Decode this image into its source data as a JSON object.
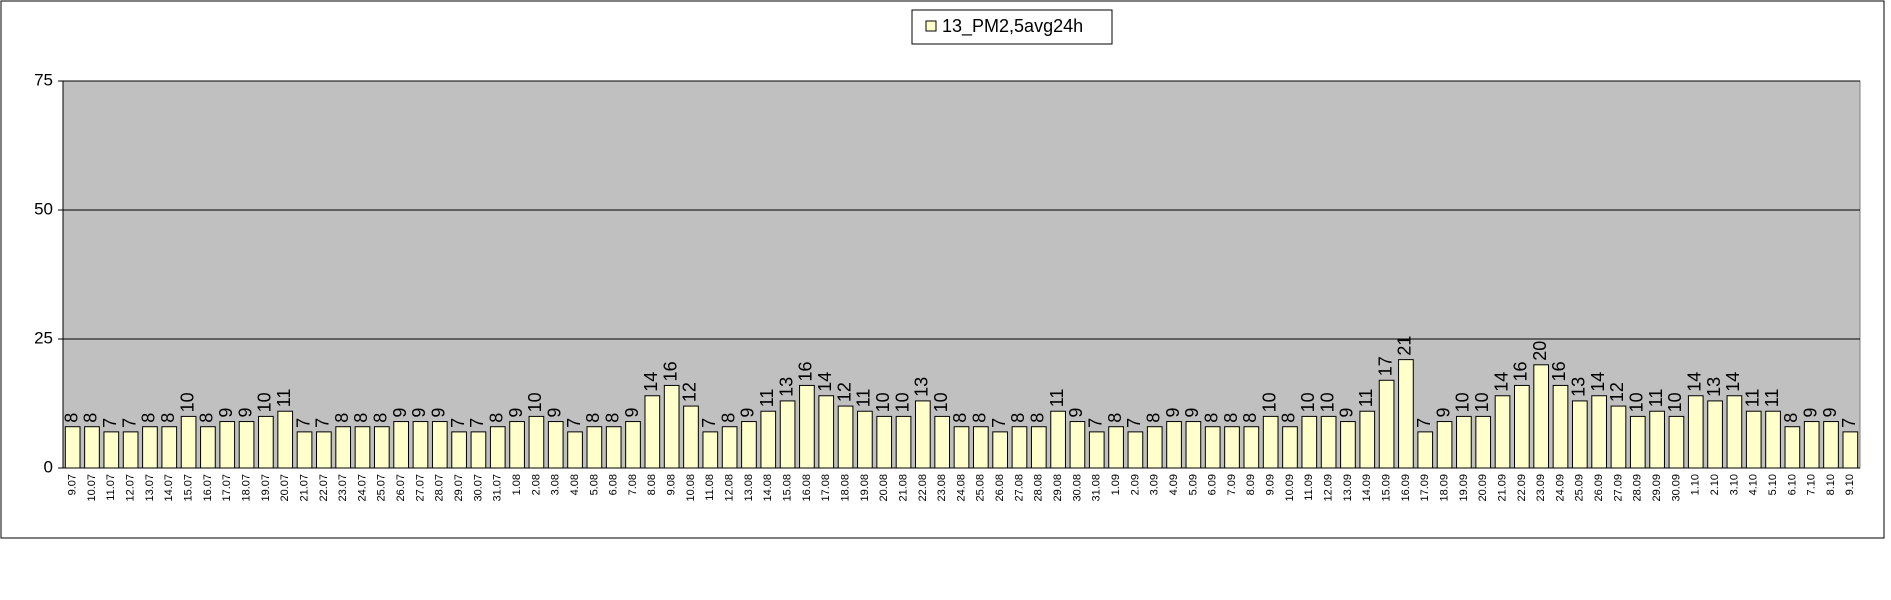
{
  "chart_data": {
    "type": "bar",
    "categories": [
      "9.07",
      "10.07",
      "11.07",
      "12.07",
      "13.07",
      "14.07",
      "15.07",
      "16.07",
      "17.07",
      "18.07",
      "19.07",
      "20.07",
      "21.07",
      "22.07",
      "23.07",
      "24.07",
      "25.07",
      "26.07",
      "27.07",
      "28.07",
      "29.07",
      "30.07",
      "31.07",
      "1.08",
      "2.08",
      "3.08",
      "4.08",
      "5.08",
      "6.08",
      "7.08",
      "8.08",
      "9.08",
      "10.08",
      "11.08",
      "12.08",
      "13.08",
      "14.08",
      "15.08",
      "16.08",
      "17.08",
      "18.08",
      "19.08",
      "20.08",
      "21.08",
      "22.08",
      "23.08",
      "24.08",
      "25.08",
      "26.08",
      "27.08",
      "28.08",
      "29.08",
      "30.08",
      "31.08",
      "1.09",
      "2.09",
      "3.09",
      "4.09",
      "5.09",
      "6.09",
      "7.09",
      "8.09",
      "9.09",
      "10.09",
      "11.09",
      "12.09",
      "13.09",
      "14.09",
      "15.09",
      "16.09",
      "17.09",
      "18.09",
      "19.09",
      "20.09",
      "21.09",
      "22.09",
      "23.09",
      "24.09",
      "25.09",
      "26.09",
      "27.09",
      "28.09",
      "29.09",
      "30.09",
      "1.10",
      "2.10",
      "3.10",
      "4.10",
      "5.10",
      "6.10",
      "7.10",
      "8.10",
      "9.10"
    ],
    "series": [
      {
        "name": "13_PM2,5avg24h",
        "color": "#ffffcc",
        "values": [
          8,
          8,
          7,
          7,
          8,
          8,
          10,
          8,
          9,
          9,
          10,
          11,
          7,
          7,
          8,
          8,
          8,
          9,
          9,
          9,
          7,
          7,
          8,
          9,
          10,
          9,
          7,
          8,
          8,
          9,
          14,
          16,
          12,
          7,
          8,
          9,
          11,
          13,
          16,
          14,
          12,
          11,
          10,
          10,
          13,
          10,
          8,
          8,
          7,
          8,
          8,
          11,
          9,
          7,
          8,
          7,
          8,
          9,
          9,
          8,
          8,
          8,
          10,
          8,
          10,
          10,
          9,
          11,
          17,
          21,
          7,
          9,
          10,
          10,
          14,
          16,
          20,
          16,
          13,
          14,
          12,
          10,
          11,
          10,
          14,
          13,
          14,
          11,
          11,
          8,
          9,
          9,
          7
        ]
      }
    ],
    "ylim": [
      0,
      75
    ],
    "yticks": [
      0,
      25,
      50,
      75
    ],
    "grid": true,
    "plot_background": "#c0c0c0",
    "legend": "top"
  }
}
